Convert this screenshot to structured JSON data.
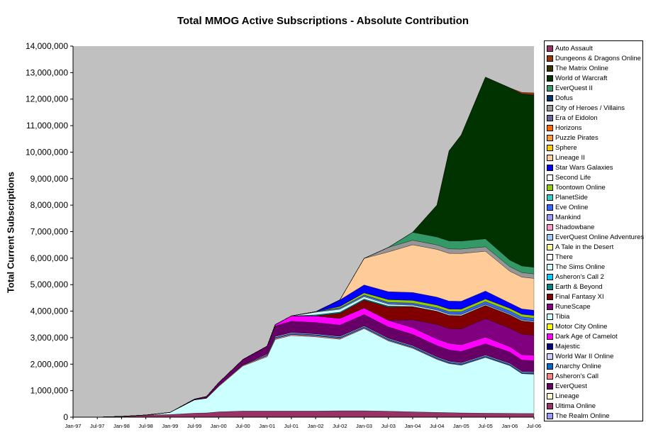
{
  "chart_data": {
    "type": "area",
    "stacked": true,
    "title": "Total MMOG Active Subscriptions -  Absolute Contribution",
    "ylabel": "Total Current Subscriptions",
    "xlabel": "",
    "ylim": [
      0,
      14000000
    ],
    "yticks": [
      0,
      1000000,
      2000000,
      3000000,
      4000000,
      5000000,
      6000000,
      7000000,
      8000000,
      9000000,
      10000000,
      11000000,
      12000000,
      13000000,
      14000000
    ],
    "ytick_labels": [
      "0",
      "1,000,000",
      "2,000,000",
      "3,000,000",
      "4,000,000",
      "5,000,000",
      "6,000,000",
      "7,000,000",
      "8,000,000",
      "9,000,000",
      "10,000,000",
      "11,000,000",
      "12,000,000",
      "13,000,000",
      "14,000,000"
    ],
    "xtick_labels": [
      "Jan-97",
      "Jul-97",
      "Jan-98",
      "Jul-98",
      "Jan-99",
      "Jul-99",
      "Jan-00",
      "Jul-00",
      "Jan-01",
      "Jul-01",
      "Jan-02",
      "Jul-02",
      "Jan-03",
      "Jul-03",
      "Jan-04",
      "Jul-04",
      "Jan-05",
      "Jul-05",
      "Jan-06",
      "Jul-06"
    ],
    "x": [
      0,
      6,
      12,
      18,
      24,
      30,
      33,
      36,
      42,
      48,
      50,
      54,
      60,
      66,
      72,
      78,
      84,
      90,
      93,
      96,
      102,
      108,
      111,
      114
    ],
    "grid": false,
    "legend_position": "right",
    "legend_order": [
      "Auto Assault",
      "Dungeons & Dragons Online",
      "The Matrix Online",
      "World of Warcraft",
      "EverQuest II",
      "Dofus",
      "City of Heroes / Villains",
      "Era of Eidolon",
      "Horizons",
      "Puzzle Pirates",
      "Sphere",
      "Lineage II",
      "Star Wars Galaxies",
      "Second Life",
      "Toontown Online",
      "PlanetSide",
      "Eve Online",
      "Mankind",
      "Shadowbane",
      "EverQuest Online Adventures",
      "A Tale in the Desert",
      "There",
      "The Sims Online",
      "Asheron's Call 2",
      "Earth & Beyond",
      "Final Fantasy XI",
      "RuneScape",
      "Tibia",
      "Motor City Online",
      "Dark Age of Camelot",
      "Majestic",
      "World War II Online",
      "Anarchy Online",
      "Asheron's Call",
      "EverQuest",
      "Lineage",
      "Ultima Online",
      "The Realm Online"
    ],
    "series": [
      {
        "name": "The Realm Online",
        "color": "#9999FF",
        "values": [
          0,
          0,
          0,
          0,
          0,
          0,
          0,
          0,
          0,
          0,
          0,
          0,
          0,
          0,
          0,
          0,
          0,
          0,
          0,
          0,
          0,
          0,
          0,
          0
        ]
      },
      {
        "name": "Ultima Online",
        "color": "#993366",
        "values": [
          0,
          0,
          30000,
          80000,
          100000,
          150000,
          160000,
          200000,
          230000,
          230000,
          230000,
          230000,
          230000,
          240000,
          240000,
          225000,
          200000,
          180000,
          170000,
          160000,
          150000,
          145000,
          140000,
          140000
        ]
      },
      {
        "name": "Lineage",
        "color": "#FFFFCC",
        "values": [
          0,
          0,
          0,
          0,
          0,
          0,
          0,
          0,
          0,
          0,
          0,
          0,
          0,
          0,
          0,
          0,
          0,
          0,
          0,
          0,
          0,
          0,
          0,
          0
        ]
      },
      {
        "name": "EverQuest",
        "color": "#660066",
        "values": [
          0,
          0,
          0,
          0,
          0,
          0,
          0,
          0,
          0,
          0,
          0,
          0,
          0,
          0,
          0,
          0,
          0,
          0,
          0,
          0,
          0,
          0,
          0,
          0
        ]
      },
      {
        "name": "Tibia",
        "color": "#CCFFFF",
        "values": [
          0,
          0,
          0,
          0,
          80000,
          500000,
          550000,
          950000,
          1700000,
          2050000,
          2700000,
          2850000,
          2800000,
          2700000,
          3100000,
          2650000,
          2400000,
          2000000,
          1850000,
          1800000,
          2100000,
          1800000,
          1500000,
          1480000
        ]
      },
      {
        "name": "Asheron's Call",
        "color": "#FF8080",
        "values": [
          0,
          0,
          0,
          0,
          0,
          0,
          10000,
          30000,
          30000,
          40000,
          40000,
          40000,
          40000,
          35000,
          30000,
          30000,
          25000,
          20000,
          20000,
          20000,
          20000,
          15000,
          15000,
          15000
        ]
      },
      {
        "name": "Anarchy Online",
        "color": "#0066CC",
        "values": [
          0,
          0,
          0,
          0,
          0,
          0,
          0,
          0,
          10000,
          30000,
          40000,
          40000,
          40000,
          40000,
          40000,
          40000,
          40000,
          40000,
          40000,
          40000,
          40000,
          40000,
          40000,
          40000
        ]
      },
      {
        "name": "World War II Online",
        "color": "#CCCCFF",
        "values": [
          0,
          0,
          0,
          0,
          0,
          0,
          0,
          0,
          5000,
          30000,
          30000,
          30000,
          30000,
          30000,
          30000,
          30000,
          30000,
          30000,
          30000,
          30000,
          30000,
          30000,
          30000,
          30000
        ]
      },
      {
        "name": "EverQuest",
        "color": "#660066",
        "values": [
          0,
          0,
          0,
          0,
          0,
          30000,
          60000,
          120000,
          200000,
          300000,
          400000,
          430000,
          430000,
          430000,
          430000,
          430000,
          430000,
          430000,
          430000,
          430000,
          430000,
          430000,
          430000,
          430000
        ]
      },
      {
        "name": "Dark Age of Camelot",
        "color": "#FF00FF",
        "values": [
          0,
          0,
          0,
          0,
          0,
          0,
          0,
          0,
          0,
          0,
          50000,
          200000,
          250000,
          250000,
          250000,
          250000,
          250000,
          250000,
          250000,
          250000,
          250000,
          200000,
          200000,
          200000
        ]
      },
      {
        "name": "RuneScape",
        "color": "#800080",
        "values": [
          0,
          0,
          0,
          0,
          0,
          0,
          0,
          0,
          0,
          0,
          0,
          0,
          0,
          0,
          0,
          0,
          300000,
          550000,
          550000,
          600000,
          700000,
          700000,
          780000,
          750000
        ]
      },
      {
        "name": "Final Fantasy XI",
        "color": "#800000",
        "values": [
          0,
          0,
          0,
          0,
          0,
          0,
          0,
          0,
          0,
          0,
          0,
          0,
          0,
          200000,
          300000,
          500000,
          500000,
          500000,
          500000,
          500000,
          500000,
          500000,
          500000,
          500000
        ]
      },
      {
        "name": "Earth & Beyond",
        "color": "#008080",
        "values": [
          0,
          0,
          0,
          0,
          0,
          0,
          0,
          0,
          0,
          0,
          0,
          0,
          40000,
          40000,
          40000,
          40000,
          0,
          0,
          0,
          0,
          0,
          0,
          0,
          0
        ]
      },
      {
        "name": "The Sims Online",
        "color": "#CCFFFF",
        "values": [
          0,
          0,
          0,
          0,
          0,
          0,
          0,
          0,
          0,
          0,
          0,
          0,
          100000,
          100000,
          80000,
          60000,
          50000,
          40000,
          40000,
          40000,
          30000,
          30000,
          30000,
          30000
        ]
      },
      {
        "name": "EverQuest Online Adventures",
        "color": "#99CCFF",
        "values": [
          0,
          0,
          0,
          0,
          0,
          0,
          0,
          0,
          0,
          0,
          0,
          0,
          20000,
          30000,
          30000,
          30000,
          20000,
          20000,
          20000,
          20000,
          20000,
          20000,
          20000,
          20000
        ]
      },
      {
        "name": "Eve Online",
        "color": "#3366FF",
        "values": [
          0,
          0,
          0,
          0,
          0,
          0,
          0,
          0,
          0,
          0,
          0,
          0,
          0,
          30000,
          40000,
          50000,
          60000,
          70000,
          80000,
          85000,
          90000,
          100000,
          100000,
          100000
        ]
      },
      {
        "name": "Toontown Online",
        "color": "#99CC00",
        "values": [
          0,
          0,
          0,
          0,
          0,
          0,
          0,
          0,
          0,
          0,
          0,
          0,
          0,
          50000,
          80000,
          100000,
          100000,
          100000,
          100000,
          100000,
          100000,
          100000,
          100000,
          100000
        ]
      },
      {
        "name": "Star Wars Galaxies",
        "color": "#0000FF",
        "values": [
          0,
          0,
          0,
          0,
          0,
          0,
          0,
          0,
          0,
          0,
          0,
          0,
          0,
          250000,
          300000,
          300000,
          300000,
          300000,
          300000,
          300000,
          300000,
          200000,
          200000,
          200000
        ]
      },
      {
        "name": "Lineage II",
        "color": "#FFCC99",
        "values": [
          0,
          0,
          0,
          0,
          0,
          0,
          0,
          0,
          0,
          0,
          0,
          0,
          0,
          0,
          1000000,
          1500000,
          1800000,
          1800000,
          1800000,
          1800000,
          1500000,
          1200000,
          1200000,
          1200000
        ]
      },
      {
        "name": "City of Heroes / Villains",
        "color": "#969696",
        "values": [
          0,
          0,
          0,
          0,
          0,
          0,
          0,
          0,
          0,
          0,
          0,
          0,
          0,
          0,
          0,
          170000,
          170000,
          170000,
          170000,
          170000,
          170000,
          170000,
          170000,
          170000
        ]
      },
      {
        "name": "EverQuest II",
        "color": "#339966",
        "values": [
          0,
          0,
          0,
          0,
          0,
          0,
          0,
          0,
          0,
          0,
          0,
          0,
          0,
          0,
          0,
          0,
          300000,
          300000,
          300000,
          300000,
          300000,
          250000,
          250000,
          250000
        ]
      },
      {
        "name": "World of Warcraft",
        "color": "#003300",
        "values": [
          0,
          0,
          0,
          0,
          0,
          0,
          0,
          0,
          0,
          0,
          0,
          0,
          0,
          0,
          0,
          0,
          0,
          1200000,
          3400000,
          4000000,
          6100000,
          6500000,
          6500000,
          6500000
        ]
      },
      {
        "name": "Dungeons & Dragons Online",
        "color": "#993300",
        "values": [
          0,
          0,
          0,
          0,
          0,
          0,
          0,
          0,
          0,
          0,
          0,
          0,
          0,
          0,
          0,
          0,
          0,
          0,
          0,
          0,
          0,
          0,
          50000,
          80000
        ]
      }
    ]
  }
}
